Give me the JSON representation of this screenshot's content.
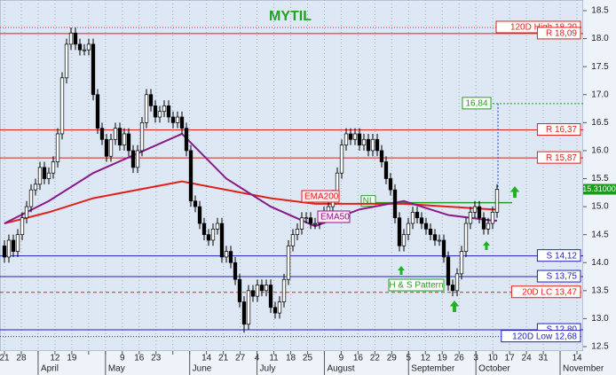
{
  "chart_data": {
    "type": "candlestick",
    "title": "MYTIL",
    "ylim": [
      12.5,
      18.5
    ],
    "yticks": [
      12.5,
      {
        "value": 13,
        "label": "13.0"
      },
      13.5,
      {
        "value": 14,
        "label": "14.0"
      },
      14.5,
      {
        "value": 15,
        "label": "15.0"
      },
      15.5,
      {
        "value": 16,
        "label": "16.0"
      },
      16.5,
      {
        "value": 17,
        "label": "17.0"
      },
      17.5,
      {
        "value": 18,
        "label": "18.0"
      },
      18.5
    ],
    "xticks": [
      "21",
      "28",
      null,
      "12",
      "19",
      null,
      null,
      "9",
      "16",
      "23",
      null,
      null,
      "14",
      "21",
      "27",
      "4",
      "11",
      "18",
      "25",
      null,
      "9",
      "16",
      "22",
      "29",
      "5",
      "12",
      "19",
      "26",
      "3",
      "10",
      "17",
      "24",
      "31",
      null,
      "14"
    ],
    "months": [
      null,
      null,
      "April",
      null,
      null,
      null,
      "May",
      null,
      null,
      null,
      null,
      "June",
      null,
      null,
      null,
      "July",
      null,
      null,
      null,
      "August",
      null,
      null,
      null,
      null,
      "September",
      null,
      null,
      null,
      "October",
      null,
      null,
      null,
      null,
      "November",
      null
    ],
    "grid": true,
    "up_color": "#ffffff",
    "down_color": "#000000",
    "open": [
      14.3,
      14.1,
      14.4,
      14.2,
      14.5,
      14.8,
      15.0,
      15.3,
      15.4,
      15.7,
      15.5,
      15.6,
      15.8,
      16.3,
      17.3,
      17.9,
      18.1,
      17.9,
      17.8,
      17.8,
      17.9,
      17.0,
      16.4,
      16.2,
      15.9,
      16.2,
      16.4,
      16.1,
      16.3,
      16.0,
      15.7,
      16.0,
      16.5,
      17.0,
      16.8,
      16.6,
      16.7,
      16.8,
      16.6,
      16.5,
      16.6,
      16.4,
      16.0,
      15.1,
      15.0,
      14.7,
      14.5,
      14.4,
      14.6,
      14.7,
      14.1,
      14.2,
      14.0,
      13.7,
      13.3,
      12.9,
      13.5,
      13.4,
      13.6,
      13.5,
      13.6,
      13.2,
      13.1,
      13.3,
      13.7,
      14.3,
      14.5,
      14.6,
      14.8,
      14.8,
      14.7,
      14.7,
      14.8,
      14.9,
      15.0,
      15.2,
      15.6,
      16.1,
      16.3,
      16.2,
      16.3,
      16.1,
      16.2,
      16.0,
      16.2,
      16.0,
      15.8,
      15.5,
      15.3,
      14.8,
      14.3,
      14.5,
      14.7,
      14.9,
      14.8,
      14.7,
      14.6,
      14.5,
      14.4,
      14.4,
      14.1,
      13.6,
      13.5,
      13.8,
      14.2,
      14.7,
      14.9,
      15.0,
      14.8,
      14.6,
      14.7,
      14.9
    ],
    "high": [
      14.4,
      14.5,
      14.5,
      14.6,
      14.9,
      15.1,
      15.4,
      15.5,
      15.8,
      15.8,
      15.7,
      15.9,
      16.4,
      17.4,
      18.0,
      18.2,
      18.2,
      18.0,
      17.9,
      18.0,
      18.0,
      17.1,
      16.5,
      16.3,
      16.3,
      16.5,
      16.5,
      16.4,
      16.4,
      16.1,
      16.1,
      16.6,
      17.1,
      17.1,
      16.9,
      16.8,
      16.9,
      16.9,
      16.7,
      16.7,
      16.7,
      16.5,
      16.1,
      15.2,
      15.1,
      14.8,
      14.6,
      14.7,
      14.8,
      14.8,
      14.3,
      14.3,
      14.1,
      13.8,
      13.4,
      13.6,
      13.6,
      13.7,
      13.7,
      13.7,
      13.7,
      13.3,
      13.4,
      13.8,
      14.4,
      14.6,
      14.7,
      14.9,
      14.9,
      14.9,
      14.8,
      14.9,
      15.0,
      15.1,
      15.3,
      15.7,
      16.2,
      16.4,
      16.4,
      16.4,
      16.4,
      16.3,
      16.3,
      16.3,
      16.3,
      16.1,
      15.9,
      15.6,
      15.4,
      14.9,
      14.6,
      14.8,
      15.0,
      15.0,
      14.9,
      14.8,
      14.7,
      14.6,
      14.5,
      14.5,
      14.2,
      13.7,
      13.9,
      14.3,
      14.8,
      15.0,
      15.1,
      15.1,
      14.9,
      14.8,
      15.0,
      15.4
    ],
    "low": [
      14.0,
      14.0,
      14.1,
      14.1,
      14.4,
      14.7,
      14.9,
      15.2,
      15.3,
      15.4,
      15.4,
      15.5,
      15.7,
      16.2,
      17.2,
      17.8,
      17.8,
      17.7,
      17.7,
      17.7,
      16.9,
      16.3,
      16.1,
      15.8,
      15.8,
      16.1,
      16.0,
      16.0,
      15.9,
      15.6,
      15.6,
      15.9,
      16.4,
      16.7,
      16.5,
      16.5,
      16.6,
      16.5,
      16.4,
      16.4,
      16.3,
      15.9,
      15.0,
      14.9,
      14.6,
      14.4,
      14.3,
      14.3,
      14.5,
      14.0,
      14.0,
      13.9,
      13.6,
      13.2,
      12.75,
      12.8,
      13.3,
      13.3,
      13.4,
      13.4,
      13.1,
      13.0,
      13.0,
      13.2,
      13.6,
      14.2,
      14.4,
      14.5,
      14.7,
      14.6,
      14.6,
      14.6,
      14.7,
      14.8,
      14.9,
      15.1,
      15.5,
      16.0,
      16.1,
      16.1,
      16.0,
      16.0,
      15.9,
      15.9,
      15.9,
      15.7,
      15.4,
      15.2,
      14.7,
      14.2,
      14.2,
      14.4,
      14.6,
      14.7,
      14.6,
      14.5,
      14.4,
      14.3,
      14.3,
      14.0,
      13.5,
      13.4,
      13.4,
      13.7,
      14.1,
      14.6,
      14.8,
      14.7,
      14.5,
      14.5,
      14.6,
      14.8
    ],
    "close": [
      14.1,
      14.4,
      14.2,
      14.5,
      14.8,
      15.0,
      15.3,
      15.4,
      15.7,
      15.5,
      15.6,
      15.8,
      16.3,
      17.3,
      17.9,
      18.1,
      17.9,
      17.8,
      17.8,
      17.9,
      17.0,
      16.4,
      16.2,
      15.9,
      16.2,
      16.4,
      16.1,
      16.3,
      16.0,
      15.7,
      16.0,
      16.5,
      17.0,
      16.8,
      16.6,
      16.7,
      16.8,
      16.6,
      16.5,
      16.6,
      16.4,
      16.0,
      15.1,
      15.0,
      14.7,
      14.5,
      14.4,
      14.6,
      14.7,
      14.1,
      14.2,
      14.0,
      13.7,
      13.3,
      12.9,
      13.5,
      13.4,
      13.6,
      13.5,
      13.6,
      13.2,
      13.1,
      13.3,
      13.7,
      14.3,
      14.5,
      14.6,
      14.8,
      14.8,
      14.7,
      14.7,
      14.8,
      14.9,
      15.0,
      15.2,
      15.6,
      16.1,
      16.3,
      16.2,
      16.3,
      16.1,
      16.2,
      16.0,
      16.2,
      16.0,
      15.8,
      15.5,
      15.3,
      14.8,
      14.3,
      14.5,
      14.7,
      14.9,
      14.8,
      14.7,
      14.6,
      14.5,
      14.4,
      14.4,
      14.1,
      13.6,
      13.5,
      13.8,
      14.2,
      14.7,
      14.9,
      15.0,
      14.8,
      14.6,
      14.7,
      14.9,
      15.31
    ],
    "series": [
      {
        "name": "EMA200",
        "color": "#e0201a",
        "x": [
          0,
          10,
          20,
          30,
          40,
          50,
          60,
          70,
          80,
          90,
          100,
          110,
          111
        ],
        "values": [
          14.7,
          14.9,
          15.15,
          15.3,
          15.45,
          15.3,
          15.15,
          15.05,
          15.05,
          15.05,
          15.0,
          14.95,
          14.95
        ]
      },
      {
        "name": "EMA50",
        "color": "#8a1a8a",
        "x": [
          0,
          10,
          20,
          30,
          40,
          50,
          60,
          70,
          80,
          90,
          100,
          110,
          111
        ],
        "values": [
          14.7,
          15.1,
          15.6,
          15.95,
          16.3,
          15.5,
          15.0,
          14.65,
          14.95,
          15.1,
          14.85,
          14.75,
          14.75
        ]
      }
    ],
    "levels": [
      {
        "label": "120D High 18,20",
        "value": 18.2,
        "color": "#e0201a",
        "style": "dotted"
      },
      {
        "label": "R 18,09",
        "value": 18.09,
        "color": "#e0201a",
        "style": "solid"
      },
      {
        "label": "R 16,37",
        "value": 16.37,
        "color": "#e0201a",
        "style": "solid"
      },
      {
        "label": "R 15,87",
        "value": 15.87,
        "color": "#e0201a",
        "style": "solid"
      },
      {
        "label": "S 14,12",
        "value": 14.12,
        "color": "#2020c0",
        "style": "solid"
      },
      {
        "label": "S 13,75",
        "value": 13.75,
        "color": "#2020c0",
        "style": "solid"
      },
      {
        "label": "20D LC 13,47",
        "value": 13.47,
        "color": "#e0201a",
        "style": "dashed"
      },
      {
        "label": "S 12,80",
        "value": 12.8,
        "color": "#2020c0",
        "style": "solid"
      },
      {
        "label": "120D Low 12,68",
        "value": 12.68,
        "color": "#2020c0",
        "style": "dotted"
      }
    ],
    "target": {
      "label": "16,84",
      "value": 16.84,
      "color": "#20a020"
    },
    "neckline": {
      "label": "NL",
      "value": 15.07,
      "color": "#20a020"
    },
    "pattern": "H & S Pattern",
    "last": {
      "value": 15.31,
      "label": "15.31000"
    }
  }
}
